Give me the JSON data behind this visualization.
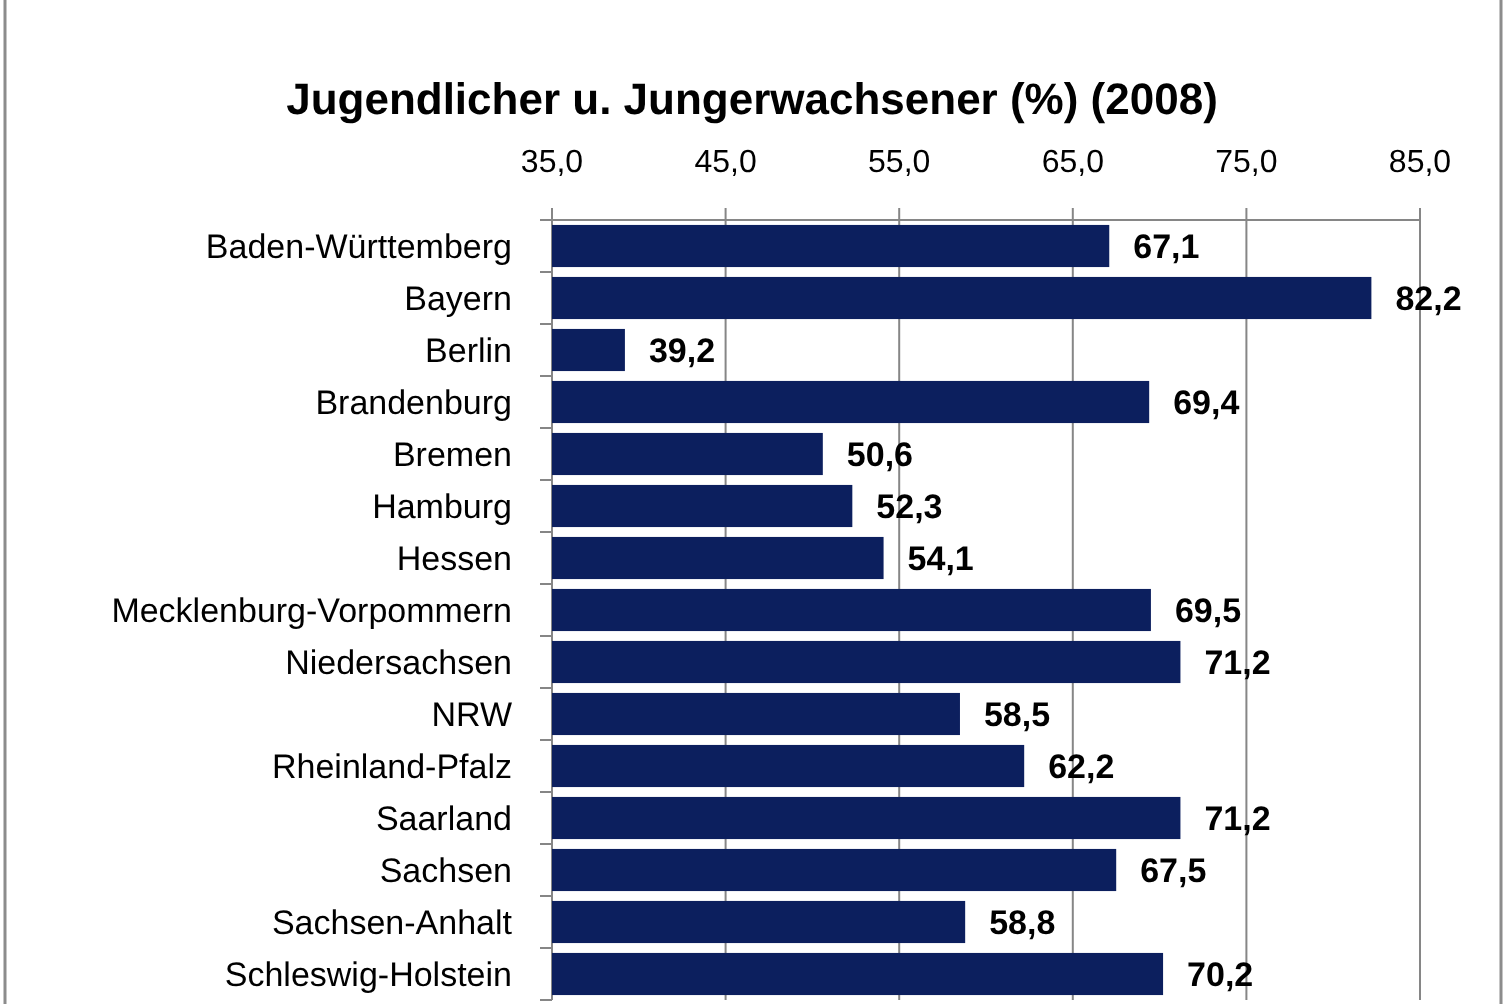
{
  "chart_data": {
    "type": "bar",
    "orientation": "horizontal",
    "title": "Jugendlicher u. Jungerwachsener (%) (2008)",
    "categories": [
      "Baden-Württemberg",
      "Bayern",
      "Berlin",
      "Brandenburg",
      "Bremen",
      "Hamburg",
      "Hessen",
      "Mecklenburg-Vorpommern",
      "Niedersachsen",
      "NRW",
      "Rheinland-Pfalz",
      "Saarland",
      "Sachsen",
      "Sachsen-Anhalt",
      "Schleswig-Holstein"
    ],
    "values": [
      67.1,
      82.2,
      39.2,
      69.4,
      50.6,
      52.3,
      54.1,
      69.5,
      71.2,
      58.5,
      62.2,
      71.2,
      67.5,
      58.8,
      70.2
    ],
    "value_labels": [
      "67,1",
      "82,2",
      "39,2",
      "69,4",
      "50,6",
      "52,3",
      "54,1",
      "69,5",
      "71,2",
      "58,5",
      "62,2",
      "71,2",
      "67,5",
      "58,8",
      "70,2"
    ],
    "color": "#0c1f5e",
    "xlim": [
      35,
      85
    ],
    "xticks": [
      {
        "value": 35,
        "label": "35,0"
      },
      {
        "value": 45,
        "label": "45,0"
      },
      {
        "value": 55,
        "label": "55,0"
      },
      {
        "value": 65,
        "label": "65,0"
      },
      {
        "value": 75,
        "label": "75,0"
      },
      {
        "value": 85,
        "label": "85,0"
      }
    ],
    "grid": "x"
  }
}
